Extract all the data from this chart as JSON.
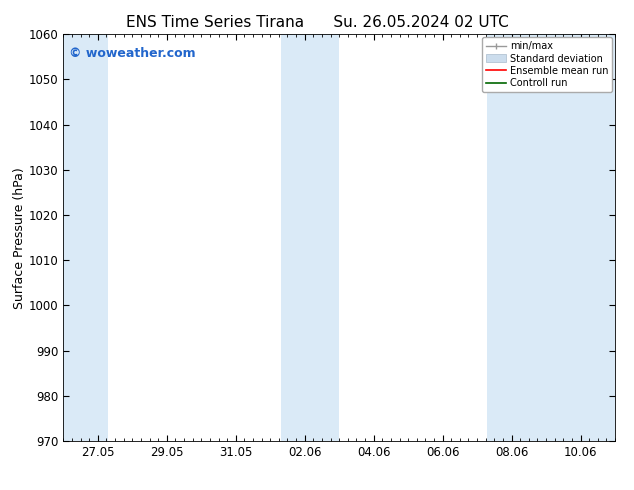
{
  "title_left": "ENS Time Series Tirana",
  "title_right": "Su. 26.05.2024 02 UTC",
  "ylabel": "Surface Pressure (hPa)",
  "ylim": [
    970,
    1060
  ],
  "yticks": [
    970,
    980,
    990,
    1000,
    1010,
    1020,
    1030,
    1040,
    1050,
    1060
  ],
  "xtick_labels": [
    "27.05",
    "29.05",
    "31.05",
    "02.06",
    "04.06",
    "06.06",
    "08.06",
    "10.06"
  ],
  "bg_color": "#ffffff",
  "plot_bg_color": "#ffffff",
  "shade_color": "#daeaf7",
  "shade_alpha": 1.0,
  "watermark_text": "© woweather.com",
  "watermark_color": "#2266cc",
  "legend_labels": [
    "min/max",
    "Standard deviation",
    "Ensemble mean run",
    "Controll run"
  ],
  "legend_colors_line": [
    "#999999",
    "#ccddee",
    "#ff0000",
    "#006600"
  ],
  "title_fontsize": 11,
  "axis_fontsize": 9,
  "tick_fontsize": 8.5,
  "watermark_fontsize": 9
}
